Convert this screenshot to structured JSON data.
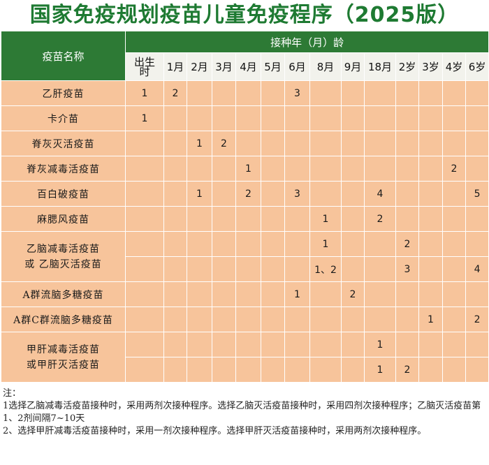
{
  "title": "国家免疫规划疫苗儿童免疫程序（2025版）",
  "header": {
    "vaccine_col": "疫苗名称",
    "age_group": "接种年（月）龄",
    "ages": [
      "出生时",
      "1月",
      "2月",
      "3月",
      "4月",
      "5月",
      "6月",
      "8月",
      "9月",
      "18月",
      "2岁",
      "3岁",
      "4岁",
      "6岁"
    ]
  },
  "vaccines": [
    {
      "name": "乙肝疫苗",
      "rows": [
        [
          "1",
          "2",
          "",
          "",
          "",
          "",
          "3",
          "",
          "",
          "",
          "",
          "",
          "",
          ""
        ]
      ]
    },
    {
      "name": "卡介苗",
      "rows": [
        [
          "1",
          "",
          "",
          "",
          "",
          "",
          "",
          "",
          "",
          "",
          "",
          "",
          "",
          ""
        ]
      ]
    },
    {
      "name": "脊灰灭活疫苗",
      "rows": [
        [
          "",
          "",
          "1",
          "2",
          "",
          "",
          "",
          "",
          "",
          "",
          "",
          "",
          "",
          ""
        ]
      ]
    },
    {
      "name": "脊灰减毒活疫苗",
      "rows": [
        [
          "",
          "",
          "",
          "",
          "1",
          "",
          "",
          "",
          "",
          "",
          "",
          "",
          "2",
          ""
        ]
      ]
    },
    {
      "name": "百白破疫苗",
      "rows": [
        [
          "",
          "",
          "1",
          "",
          "2",
          "",
          "3",
          "",
          "",
          "4",
          "",
          "",
          "",
          "5"
        ]
      ]
    },
    {
      "name": "麻腮风疫苗",
      "rows": [
        [
          "",
          "",
          "",
          "",
          "",
          "",
          "",
          "1",
          "",
          "2",
          "",
          "",
          "",
          ""
        ]
      ]
    },
    {
      "name": "乙脑减毒活疫苗",
      "name2": "或 乙脑灭活疫苗",
      "rows": [
        [
          "",
          "",
          "",
          "",
          "",
          "",
          "",
          "1",
          "",
          "",
          "2",
          "",
          "",
          ""
        ],
        [
          "",
          "",
          "",
          "",
          "",
          "",
          "",
          "1、2",
          "",
          "",
          "3",
          "",
          "",
          "4"
        ]
      ]
    },
    {
      "name": "A群流脑多糖疫苗",
      "rows": [
        [
          "",
          "",
          "",
          "",
          "",
          "",
          "1",
          "",
          "2",
          "",
          "",
          "",
          "",
          ""
        ]
      ]
    },
    {
      "name": "A群C群流脑多糖疫苗",
      "rows": [
        [
          "",
          "",
          "",
          "",
          "",
          "",
          "",
          "",
          "",
          "",
          "",
          "1",
          "",
          "2"
        ]
      ]
    },
    {
      "name": "甲肝减毒活疫苗",
      "name2": "或甲肝灭活疫苗",
      "rows": [
        [
          "",
          "",
          "",
          "",
          "",
          "",
          "",
          "",
          "",
          "1",
          "",
          "",
          "",
          ""
        ],
        [
          "",
          "",
          "",
          "",
          "",
          "",
          "",
          "",
          "",
          "1",
          "2",
          "",
          "",
          ""
        ]
      ]
    }
  ],
  "notes": {
    "label": "注：",
    "lines": [
      "1选择乙脑减毒活疫苗接种时，采用两剂次接种程序。选择乙脑灭活疫苗接种时，采用四剂次接种程序；乙脑灭活疫苗第1、2剂间隔7~10天",
      "2、选择甲肝减毒活疫苗接种时，采用一剂次接种程序。选择甲肝灭活疫苗接种时，采用两剂次接种程序。"
    ]
  },
  "colors": {
    "title": "#1e7a32",
    "header": "#2d7a35",
    "cell": "#f7c49b",
    "age_header": "#f2f2ec"
  }
}
